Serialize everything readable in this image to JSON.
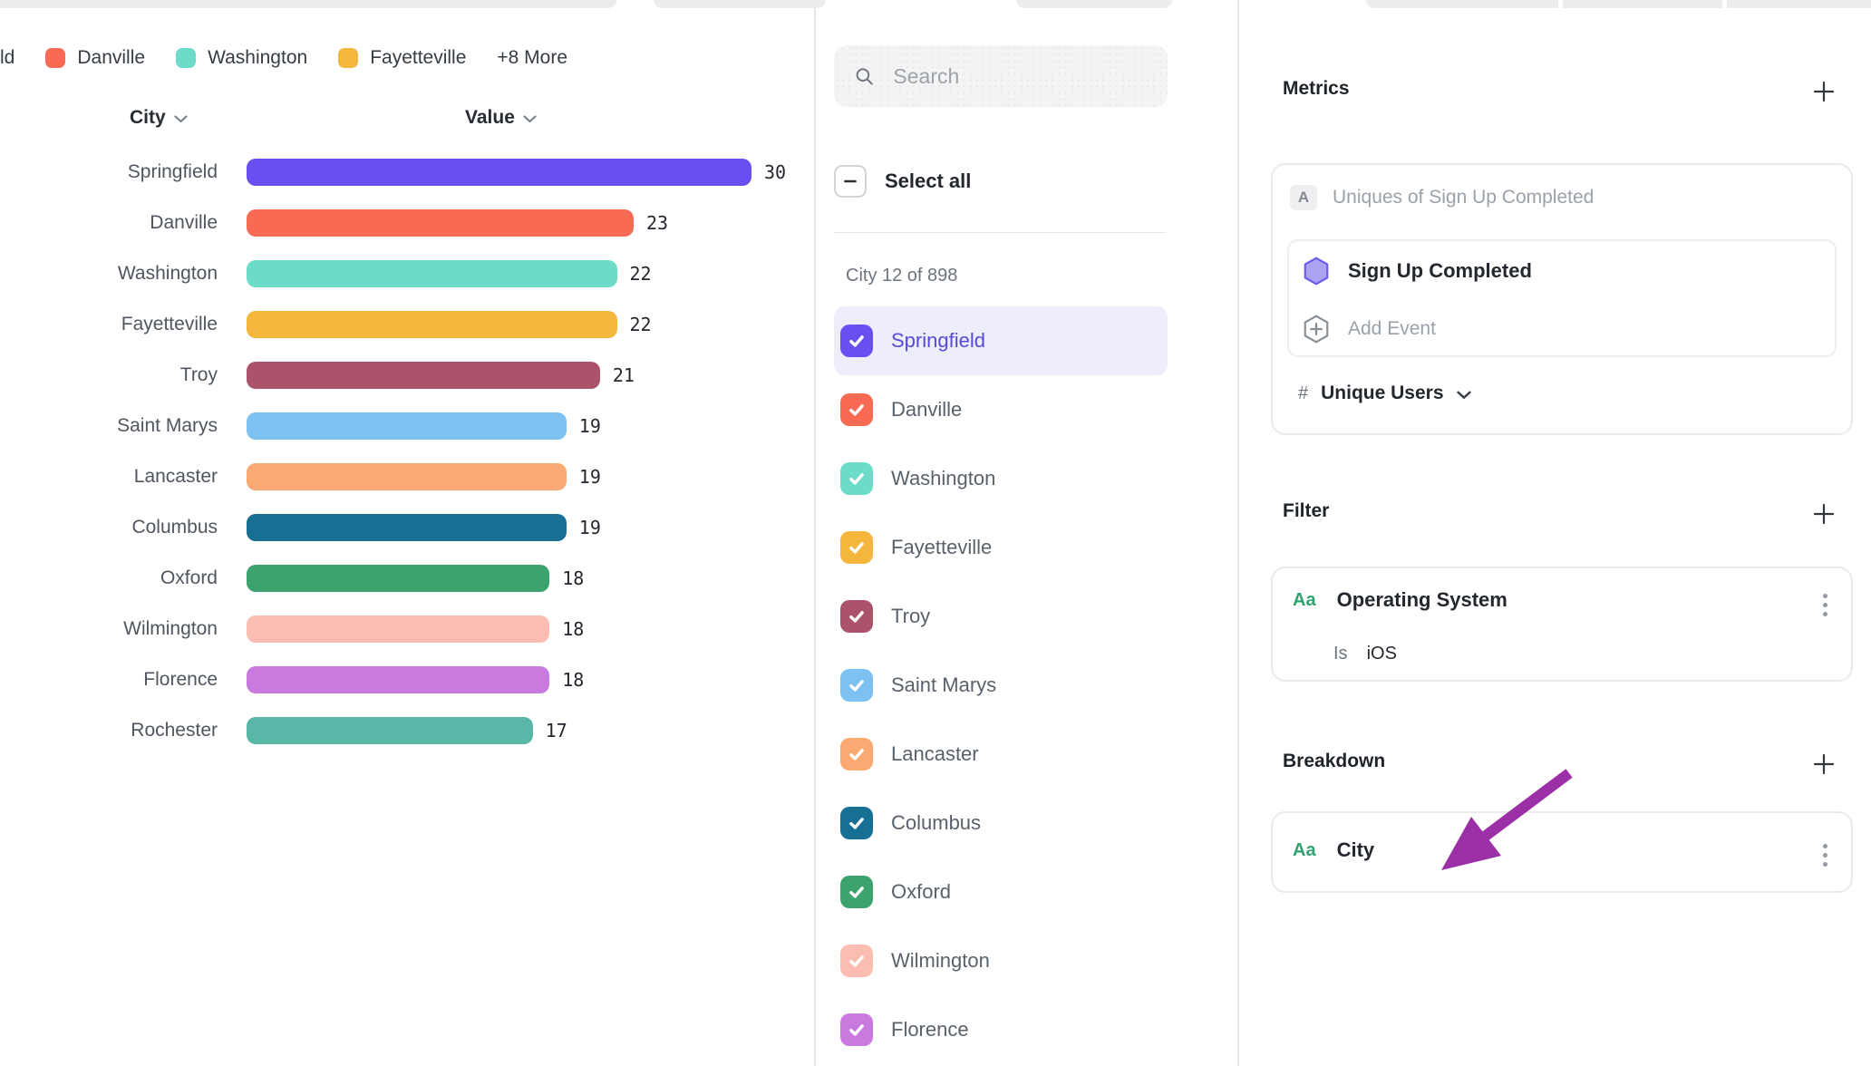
{
  "legend": {
    "clipped_label": "ld",
    "items": [
      {
        "label": "Danville",
        "color": "#F86A53"
      },
      {
        "label": "Washington",
        "color": "#6CDCC8"
      },
      {
        "label": "Fayetteville",
        "color": "#F4B63D"
      }
    ],
    "more_label": "+8 More"
  },
  "chart_data": {
    "type": "bar",
    "orientation": "horizontal",
    "column_headers": {
      "category": "City",
      "value": "Value"
    },
    "categories": [
      "Springfield",
      "Danville",
      "Washington",
      "Fayetteville",
      "Troy",
      "Saint Marys",
      "Lancaster",
      "Columbus",
      "Oxford",
      "Wilmington",
      "Florence",
      "Rochester"
    ],
    "values": [
      30,
      23,
      22,
      22,
      21,
      19,
      19,
      19,
      18,
      18,
      18,
      17
    ],
    "colors": [
      "#6B4EF0",
      "#F86A53",
      "#6CDCC8",
      "#F4B63D",
      "#AA536B",
      "#7CC1F2",
      "#F9A971",
      "#176F93",
      "#3CA36F",
      "#FBBCB1",
      "#C97ADF",
      "#58B7A6"
    ],
    "xlim": [
      0,
      30
    ],
    "grid": false,
    "value_labels": true
  },
  "selector": {
    "search_placeholder": "Search",
    "select_all_label": "Select all",
    "count_label": "City 12 of 898",
    "items": [
      {
        "label": "Springfield",
        "color": "#6B4EF0",
        "checked": true,
        "active": true
      },
      {
        "label": "Danville",
        "color": "#F86A53",
        "checked": true
      },
      {
        "label": "Washington",
        "color": "#6CDCC8",
        "checked": true
      },
      {
        "label": "Fayetteville",
        "color": "#F4B63D",
        "checked": true
      },
      {
        "label": "Troy",
        "color": "#AA536B",
        "checked": true
      },
      {
        "label": "Saint Marys",
        "color": "#7CC1F2",
        "checked": true
      },
      {
        "label": "Lancaster",
        "color": "#F9A971",
        "checked": true
      },
      {
        "label": "Columbus",
        "color": "#176F93",
        "checked": true
      },
      {
        "label": "Oxford",
        "color": "#3CA36F",
        "checked": true
      },
      {
        "label": "Wilmington",
        "color": "#FBBCB1",
        "checked": true
      },
      {
        "label": "Florence",
        "color": "#C97ADF",
        "checked": true
      }
    ]
  },
  "inspector": {
    "metrics": {
      "title": "Metrics",
      "badge": "A",
      "summary": "Uniques of Sign Up Completed",
      "event_name": "Sign Up Completed",
      "add_event_label": "Add Event",
      "measure_prefix": "#",
      "measure_label": "Unique Users"
    },
    "filter": {
      "title": "Filter",
      "badge": "Aa",
      "property": "Operating System",
      "operator": "Is",
      "value": "iOS"
    },
    "breakdown": {
      "title": "Breakdown",
      "badge": "Aa",
      "property": "City"
    },
    "annotation_arrow_color": "#9B2FA5"
  }
}
